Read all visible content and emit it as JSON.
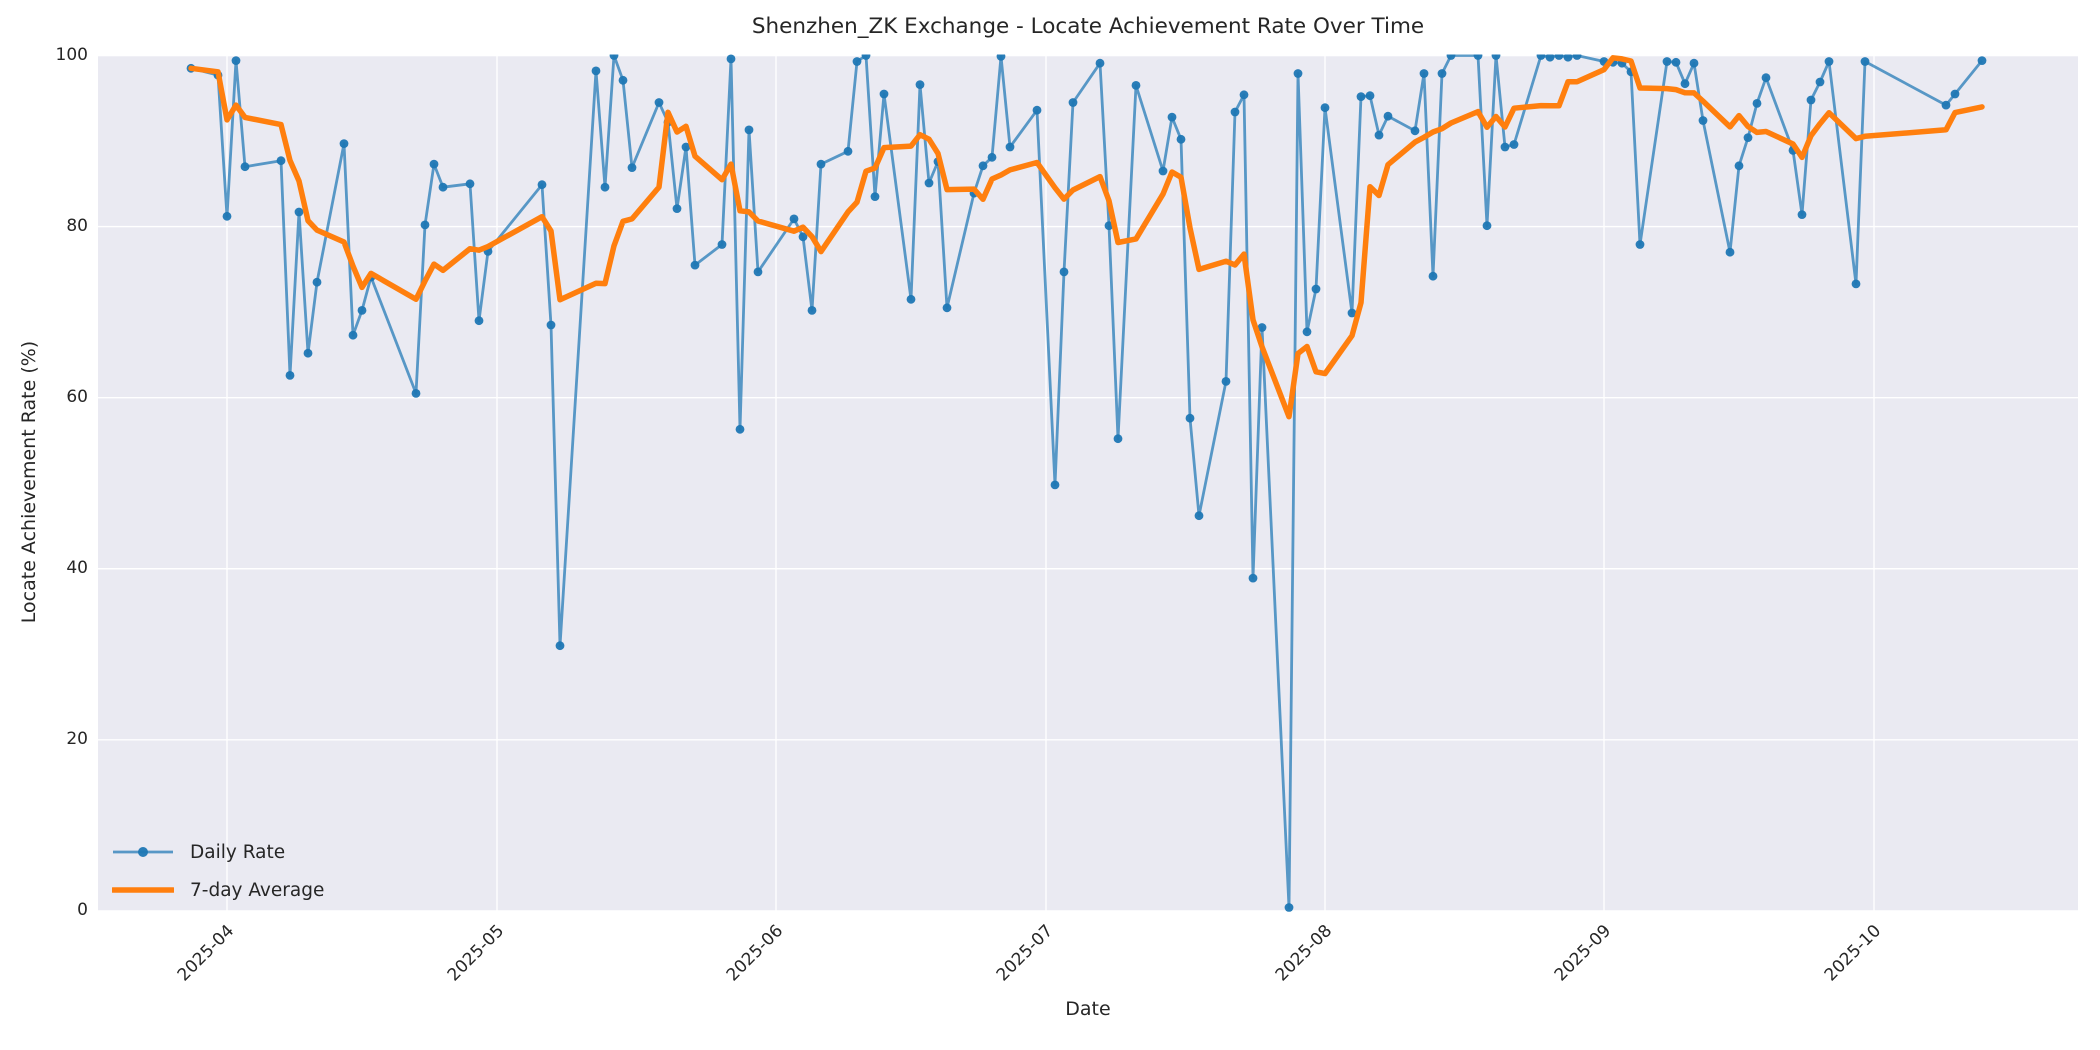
{
  "title": "Shenzhen_ZK Exchange - Locate Achievement Rate Over Time",
  "colors": {
    "daily_line": "#1f77b4",
    "daily_line_alpha": 0.72,
    "daily_marker": "#2e6da4",
    "average_line": "#ff7f0e",
    "axes_background": "#eaeaf2",
    "grid": "#ffffff",
    "figure_background": "#ffffff",
    "text": "#262626"
  },
  "chart_data": {
    "type": "line",
    "title": "Shenzhen_ZK Exchange - Locate Achievement Rate Over Time",
    "xlabel": "Date",
    "ylabel": "Locate Achievement Rate (%)",
    "ylim": [
      0,
      100
    ],
    "y_ticks": [
      0,
      20,
      40,
      60,
      80,
      100
    ],
    "x_ticks": [
      "2025-04",
      "2025-05",
      "2025-06",
      "2025-07",
      "2025-08",
      "2025-09",
      "2025-10"
    ],
    "grid": true,
    "legend_position": "lower left",
    "series": [
      {
        "name": "Daily Rate",
        "style": "line+markers",
        "points": [
          [
            "2025-03-28",
            98.5
          ],
          [
            "2025-03-31",
            97.7
          ],
          [
            "2025-04-01",
            81.2
          ],
          [
            "2025-04-02",
            99.4
          ],
          [
            "2025-04-03",
            87.0
          ],
          [
            "2025-04-07",
            87.7
          ],
          [
            "2025-04-08",
            62.6
          ],
          [
            "2025-04-09",
            81.7
          ],
          [
            "2025-04-10",
            65.2
          ],
          [
            "2025-04-11",
            73.5
          ],
          [
            "2025-04-14",
            89.7
          ],
          [
            "2025-04-15",
            67.3
          ],
          [
            "2025-04-16",
            70.2
          ],
          [
            "2025-04-17",
            74.1
          ],
          [
            "2025-04-22",
            60.5
          ],
          [
            "2025-04-23",
            80.2
          ],
          [
            "2025-04-24",
            87.3
          ],
          [
            "2025-04-25",
            84.6
          ],
          [
            "2025-04-28",
            85.0
          ],
          [
            "2025-04-29",
            69.0
          ],
          [
            "2025-04-30",
            77.1
          ],
          [
            "2025-05-06",
            84.9
          ],
          [
            "2025-05-07",
            68.5
          ],
          [
            "2025-05-08",
            31.0
          ],
          [
            "2025-05-12",
            98.2
          ],
          [
            "2025-05-13",
            84.6
          ],
          [
            "2025-05-14",
            100.0
          ],
          [
            "2025-05-15",
            97.1
          ],
          [
            "2025-05-16",
            86.9
          ],
          [
            "2025-05-19",
            94.5
          ],
          [
            "2025-05-20",
            92.2
          ],
          [
            "2025-05-21",
            82.1
          ],
          [
            "2025-05-22",
            89.3
          ],
          [
            "2025-05-23",
            75.5
          ],
          [
            "2025-05-26",
            77.9
          ],
          [
            "2025-05-27",
            99.6
          ],
          [
            "2025-05-28",
            56.3
          ],
          [
            "2025-05-29",
            91.3
          ],
          [
            "2025-05-30",
            74.7
          ],
          [
            "2025-06-03",
            80.9
          ],
          [
            "2025-06-04",
            78.8
          ],
          [
            "2025-06-05",
            70.2
          ],
          [
            "2025-06-06",
            87.3
          ],
          [
            "2025-06-09",
            88.8
          ],
          [
            "2025-06-10",
            99.3
          ],
          [
            "2025-06-11",
            100.0
          ],
          [
            "2025-06-12",
            83.5
          ],
          [
            "2025-06-13",
            95.5
          ],
          [
            "2025-06-16",
            71.5
          ],
          [
            "2025-06-17",
            96.6
          ],
          [
            "2025-06-18",
            85.1
          ],
          [
            "2025-06-19",
            87.6
          ],
          [
            "2025-06-20",
            70.5
          ],
          [
            "2025-06-23",
            83.9
          ],
          [
            "2025-06-24",
            87.1
          ],
          [
            "2025-06-25",
            88.1
          ],
          [
            "2025-06-26",
            99.9
          ],
          [
            "2025-06-27",
            89.3
          ],
          [
            "2025-06-30",
            93.6
          ],
          [
            "2025-07-02",
            49.8
          ],
          [
            "2025-07-03",
            74.7
          ],
          [
            "2025-07-04",
            94.5
          ],
          [
            "2025-07-07",
            99.1
          ],
          [
            "2025-07-08",
            80.1
          ],
          [
            "2025-07-09",
            55.2
          ],
          [
            "2025-07-11",
            96.5
          ],
          [
            "2025-07-14",
            86.5
          ],
          [
            "2025-07-15",
            92.8
          ],
          [
            "2025-07-16",
            90.2
          ],
          [
            "2025-07-17",
            57.6
          ],
          [
            "2025-07-18",
            46.2
          ],
          [
            "2025-07-21",
            61.9
          ],
          [
            "2025-07-22",
            93.4
          ],
          [
            "2025-07-23",
            95.4
          ],
          [
            "2025-07-24",
            38.9
          ],
          [
            "2025-07-25",
            68.2
          ],
          [
            "2025-07-28",
            0.4
          ],
          [
            "2025-07-29",
            97.9
          ],
          [
            "2025-07-30",
            67.7
          ],
          [
            "2025-07-31",
            72.7
          ],
          [
            "2025-08-01",
            93.9
          ],
          [
            "2025-08-04",
            69.9
          ],
          [
            "2025-08-05",
            95.2
          ],
          [
            "2025-08-06",
            95.3
          ],
          [
            "2025-08-07",
            90.7
          ],
          [
            "2025-08-08",
            92.9
          ],
          [
            "2025-08-11",
            91.2
          ],
          [
            "2025-08-12",
            97.9
          ],
          [
            "2025-08-13",
            74.2
          ],
          [
            "2025-08-14",
            97.9
          ],
          [
            "2025-08-15",
            100.0
          ],
          [
            "2025-08-18",
            100.0
          ],
          [
            "2025-08-19",
            80.1
          ],
          [
            "2025-08-20",
            100.0
          ],
          [
            "2025-08-21",
            89.3
          ],
          [
            "2025-08-22",
            89.6
          ],
          [
            "2025-08-25",
            100.0
          ],
          [
            "2025-08-26",
            99.8
          ],
          [
            "2025-08-27",
            100.0
          ],
          [
            "2025-08-28",
            99.8
          ],
          [
            "2025-08-29",
            100.0
          ],
          [
            "2025-09-01",
            99.3
          ],
          [
            "2025-09-02",
            99.2
          ],
          [
            "2025-09-03",
            99.1
          ],
          [
            "2025-09-04",
            98.1
          ],
          [
            "2025-09-05",
            77.9
          ],
          [
            "2025-09-08",
            99.3
          ],
          [
            "2025-09-09",
            99.2
          ],
          [
            "2025-09-10",
            96.7
          ],
          [
            "2025-09-11",
            99.1
          ],
          [
            "2025-09-12",
            92.4
          ],
          [
            "2025-09-15",
            77.0
          ],
          [
            "2025-09-16",
            87.1
          ],
          [
            "2025-09-17",
            90.4
          ],
          [
            "2025-09-18",
            94.4
          ],
          [
            "2025-09-19",
            97.4
          ],
          [
            "2025-09-22",
            88.9
          ],
          [
            "2025-09-23",
            81.4
          ],
          [
            "2025-09-24",
            94.8
          ],
          [
            "2025-09-25",
            96.9
          ],
          [
            "2025-09-26",
            99.3
          ],
          [
            "2025-09-29",
            73.3
          ],
          [
            "2025-09-30",
            99.3
          ],
          [
            "2025-10-09",
            94.2
          ],
          [
            "2025-10-10",
            95.5
          ],
          [
            "2025-10-13",
            99.4
          ]
        ]
      },
      {
        "name": "7-day Average",
        "style": "line",
        "derived": "7-day rolling mean (window of last 7 observations) of Daily Rate"
      }
    ]
  }
}
